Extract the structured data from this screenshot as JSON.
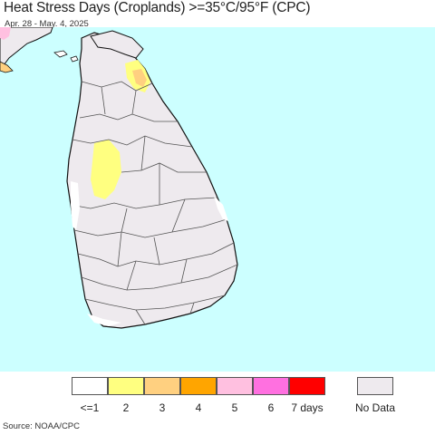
{
  "title": "Heat Stress Days (Croplands) >=35°C/95°F (CPC)",
  "subtitle": "Apr. 28 - May. 4, 2025",
  "source": "Source: NOAA/CPC",
  "map": {
    "ocean_color": "#ccffff",
    "land_color": "#ffffff",
    "cropland_color": "#eeeaee",
    "region": "Sri Lanka and southern India",
    "highlighted": [
      {
        "area": "north-western interior",
        "category": "2",
        "color": "#ffff80"
      },
      {
        "area": "north-central",
        "category": "2",
        "color": "#ffff80"
      },
      {
        "area": "north-central",
        "category": "3",
        "color": "#ffd080"
      },
      {
        "area": "southern India corner",
        "category": "3",
        "color": "#ffd080"
      },
      {
        "area": "top-left corner",
        "category": "5",
        "color": "#ffc0e0"
      }
    ]
  },
  "legend": {
    "items": [
      {
        "label": "<=1",
        "color": "#ffffff"
      },
      {
        "label": "2",
        "color": "#ffff80"
      },
      {
        "label": "3",
        "color": "#ffd080"
      },
      {
        "label": "4",
        "color": "#ffa500"
      },
      {
        "label": "5",
        "color": "#ffc0e0"
      },
      {
        "label": "6",
        "color": "#ff70e0"
      },
      {
        "label": "7 days",
        "color": "#ff0000"
      }
    ],
    "nodata": {
      "label": "No Data",
      "color": "#eeeaee"
    }
  }
}
